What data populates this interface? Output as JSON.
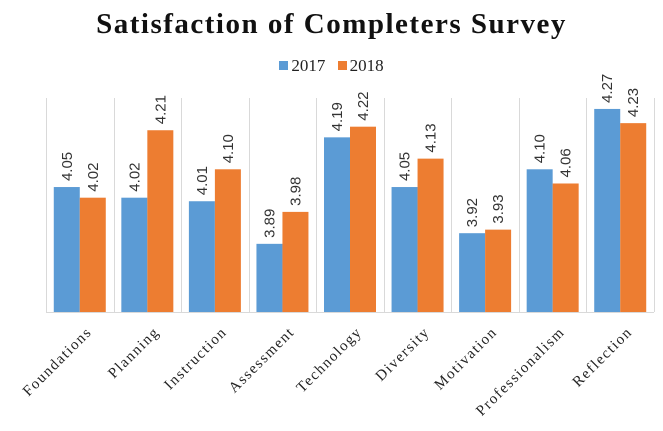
{
  "chart_data": {
    "type": "bar",
    "title": "Satisfaction of Completers Survey",
    "xlabel": "",
    "ylabel": "",
    "categories": [
      "Foundations",
      "Planning",
      "Instruction",
      "Assessment",
      "Technology",
      "Diversity",
      "Motivation",
      "Professionalism",
      "Reflection"
    ],
    "series": [
      {
        "name": "2017",
        "color": "#5B9BD5",
        "values": [
          4.05,
          4.02,
          4.01,
          3.89,
          4.19,
          4.05,
          3.92,
          4.1,
          4.27
        ],
        "labels": [
          "4.05",
          "4.02",
          "4.01",
          "3.89",
          "4.19",
          "4.05",
          "3.92",
          "4.10",
          "4.27"
        ]
      },
      {
        "name": "2018",
        "color": "#ED7D31",
        "values": [
          4.02,
          4.21,
          4.1,
          3.98,
          4.22,
          4.13,
          3.93,
          4.06,
          4.23
        ],
        "labels": [
          "4.02",
          "4.21",
          "4.10",
          "3.98",
          "4.22",
          "4.13",
          "3.93",
          "4.06",
          "4.23"
        ]
      }
    ],
    "ylim": [
      3.7,
      4.3
    ],
    "y_axis_visible": false,
    "grid": "vertical category separators",
    "legend_position": "top-center",
    "data_labels": "rotated above bars"
  }
}
